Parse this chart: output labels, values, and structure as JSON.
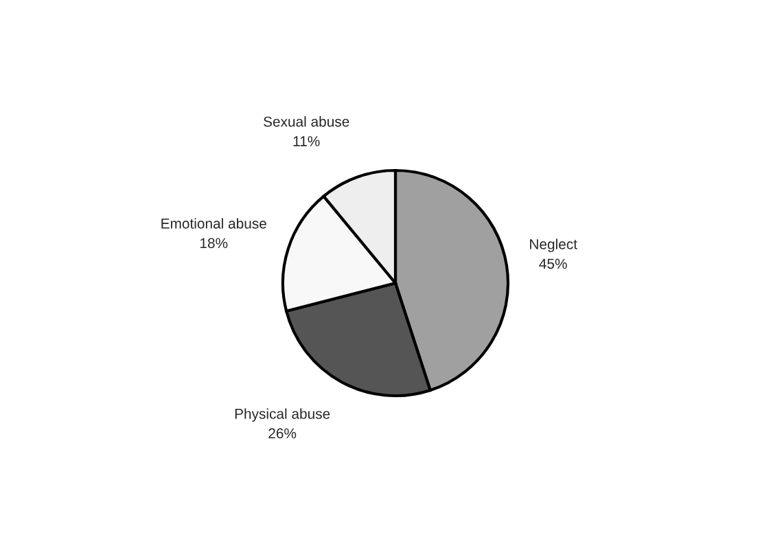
{
  "chart_data": {
    "type": "pie",
    "categories": [
      "Neglect",
      "Physical abuse",
      "Emotional abuse",
      "Sexual abuse"
    ],
    "values": [
      45,
      26,
      18,
      11
    ],
    "value_labels": [
      "45%",
      "26%",
      "18%",
      "11%"
    ],
    "colors": [
      "#a0a0a0",
      "#555555",
      "#f8f8f8",
      "#eeeeee"
    ]
  }
}
